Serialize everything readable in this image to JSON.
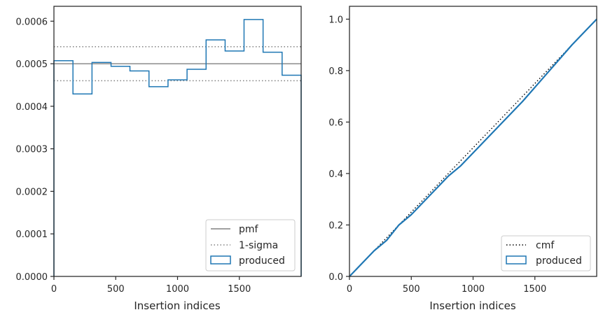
{
  "colors": {
    "produced": "#1f77b4",
    "pmf": "#808080",
    "sigma": "#808080",
    "cmf": "#000000",
    "axes": "#262626"
  },
  "chart_data": [
    {
      "type": "line",
      "subtype": "step-histogram",
      "title": "",
      "xlabel": "Insertion indices",
      "ylabel": "",
      "xlim": [
        0,
        2000
      ],
      "ylim": [
        0,
        0.000635
      ],
      "x_ticks": [
        0,
        500,
        1000,
        1500
      ],
      "x_tick_labels": [
        "0",
        "500",
        "1000",
        "1500"
      ],
      "y_ticks": [
        0,
        0.0001,
        0.0002,
        0.0003,
        0.0004,
        0.0005,
        0.0006
      ],
      "y_tick_labels": [
        "0.0000",
        "0.0001",
        "0.0002",
        "0.0003",
        "0.0004",
        "0.0005",
        "0.0006"
      ],
      "pmf": 0.0005,
      "sigma_lines": [
        0.00046,
        0.00054
      ],
      "bin_edges": [
        0,
        154,
        308,
        462,
        615,
        769,
        923,
        1077,
        1231,
        1385,
        1538,
        1692,
        1846,
        2000
      ],
      "produced_values": [
        0.000507,
        0.000429,
        0.000503,
        0.000494,
        0.000483,
        0.000446,
        0.000462,
        0.000487,
        0.000556,
        0.00053,
        0.000604,
        0.000527,
        0.000473
      ],
      "legend": {
        "position": "lower-right",
        "entries": [
          {
            "label": "pmf",
            "style": "solid-line",
            "color": "#808080"
          },
          {
            "label": "1-sigma",
            "style": "dotted-line",
            "color": "#808080"
          },
          {
            "label": "produced",
            "style": "box",
            "color": "#1f77b4"
          }
        ]
      },
      "grid": false
    },
    {
      "type": "line",
      "title": "",
      "xlabel": "Insertion indices",
      "ylabel": "",
      "xlim": [
        0,
        2000
      ],
      "ylim": [
        0,
        1.05
      ],
      "x_ticks": [
        0,
        500,
        1000,
        1500
      ],
      "x_tick_labels": [
        "0",
        "500",
        "1000",
        "1500"
      ],
      "y_ticks": [
        0,
        0.2,
        0.4,
        0.6,
        0.8,
        1.0
      ],
      "y_tick_labels": [
        "0.0",
        "0.2",
        "0.4",
        "0.6",
        "0.8",
        "1.0"
      ],
      "cmf": {
        "x": [
          0,
          2000
        ],
        "y": [
          0,
          1.0
        ]
      },
      "produced": {
        "x": [
          0,
          100,
          200,
          300,
          400,
          500,
          600,
          700,
          800,
          900,
          1000,
          1100,
          1200,
          1300,
          1400,
          1500,
          1600,
          1700,
          1800,
          1900,
          2000
        ],
        "y": [
          0,
          0.05,
          0.1,
          0.14,
          0.2,
          0.24,
          0.29,
          0.34,
          0.39,
          0.43,
          0.48,
          0.53,
          0.58,
          0.63,
          0.68,
          0.735,
          0.79,
          0.845,
          0.9,
          0.95,
          1.0
        ]
      },
      "legend": {
        "position": "lower-right",
        "entries": [
          {
            "label": "cmf",
            "style": "dotted-line",
            "color": "#000000"
          },
          {
            "label": "produced",
            "style": "box",
            "color": "#1f77b4"
          }
        ]
      },
      "grid": false
    }
  ]
}
